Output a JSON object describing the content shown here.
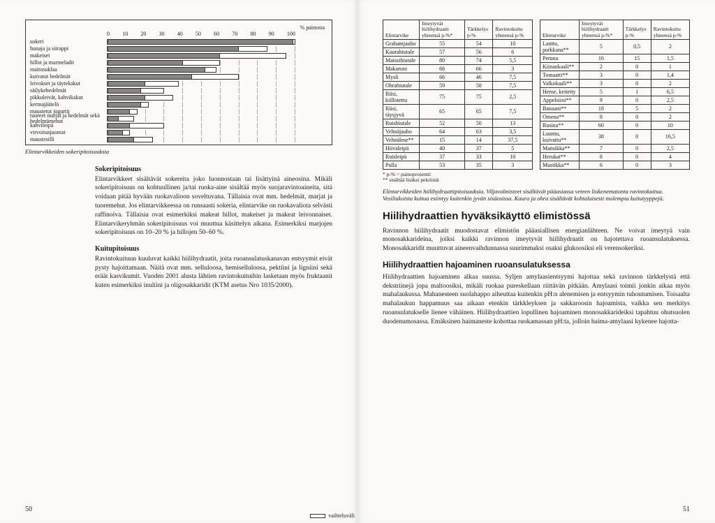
{
  "chart": {
    "type": "bar",
    "header_right": "% painosta",
    "xticks": [
      "0",
      "10",
      "20",
      "30",
      "40",
      "50",
      "60",
      "70",
      "80",
      "90",
      "100"
    ],
    "legend_label": "vaihteluväli",
    "caption": "Elintarvikkeiden sokeripitoisuuksia",
    "bar_color_inner": "#878582",
    "bar_color_outer": "#fefdf8",
    "grid_color": "#aaaaaa",
    "rows": [
      {
        "label": "sokeri",
        "lo": 99,
        "hi": 100
      },
      {
        "label": "hunaja ja siirappi",
        "lo": 70,
        "hi": 85
      },
      {
        "label": "makeiset",
        "lo": 60,
        "hi": 95
      },
      {
        "label": "hillot ja marmeladit",
        "lo": 40,
        "hi": 60
      },
      {
        "label": "maitosuklaa",
        "lo": 52,
        "hi": 58
      },
      {
        "label": "kuivatut hedelmät",
        "lo": 45,
        "hi": 70
      },
      {
        "label": "leivokset ja täytekakut",
        "lo": 20,
        "hi": 38
      },
      {
        "label": "säilykehedelmät",
        "lo": 18,
        "hi": 30
      },
      {
        "label": "pikkuleivät, kahvikakut",
        "lo": 20,
        "hi": 35
      },
      {
        "label": "kermajäätelö",
        "lo": 18,
        "hi": 22
      },
      {
        "label": "maustetut jogurtit",
        "lo": 12,
        "hi": 16
      },
      {
        "label": "tuoreet marjat ja hedelmät sekä hedelmämehut",
        "lo": 6,
        "hi": 14
      },
      {
        "label": "kahvileipä",
        "lo": 12,
        "hi": 30
      },
      {
        "label": "virvoitusjuomat",
        "lo": 8,
        "hi": 12
      },
      {
        "label": "maustesilli",
        "lo": 14,
        "hi": 24
      }
    ]
  },
  "left_text": {
    "h1": "Sokeripitoisuus",
    "p1": "Elintarvikkeet sisältävät sokereita joko luonnostaan tai lisättyinä aineosina. Mikäli sokeripitoisuus on kohtuullinen ja/tai ruoka-aine sisältää myös suojaravintoaineita, sitä voidaan pitää hyvään ruokavalioon soveltuvana. Tällaisia ovat mm. hedelmät, marjat ja tuoremehut. Jos elintarvikkeessa on runsaasti sokeria, elintarvike on ruokavaliota selvästi raffinoiva. Tällaisia ovat esimerkiksi makeat hillot, makeiset ja makeat leivonnaiset. Elintarvikeryhmän sokeripitoisuus voi muuttua käsittelyn aikana. Esimerkiksi marjojen sokeripitoisuus on 10–20 % ja hillojen 50–60 %.",
    "h2": "Kuitupitoisuus",
    "p2": "Ravintokuituun kuuluvat kaikki hiilihydraatit, joita ruoansulatuskanavan entsyymit eivät pysty hajoittamaan. Näitä ovat mm. selluloosa, hemiselluloosa, pektiini ja ligniini sekä eräät kasvikumit. Vuoden 2001 alusta lähtien ravintokuituihin lasketaan myös fruktaanit kuten esimerkiksi inuliini ja oligosakkaridit (KTM asetus Nro 1035/2000)."
  },
  "tables": {
    "headers": [
      "Elintarvike",
      "Imeytyvät hiilihydraatit yhteensä p-%*",
      "Tärkkelys p-%",
      "Ravintokuitu yhteensä p-%"
    ],
    "footnote1": "* p-% = painoprosentti",
    "footnote2": "** sisältää lisäksi pektiiniä",
    "caption": "Elintarvikkeiden hiilihydraattipitoisuuksia. Viljavalmisteet sisältävät pääasiassa veteen liukenematonta ravintokuitua. Vesiliukoista kuitua esiintyy kuitenkin jyvän sisäosissa. Kaura ja ohra sisältävät kohtalaisesti molempia kuitutyyppejä.",
    "left": [
      {
        "n": "Grahamjauho",
        "a": "55",
        "b": "54",
        "c": "10"
      },
      {
        "n": "Kaurahiutale",
        "a": "57",
        "b": "56",
        "c": "6"
      },
      {
        "n": "Maissihiutale",
        "a": "80",
        "b": "74",
        "c": "5,5"
      },
      {
        "n": "Makaroni",
        "a": "66",
        "b": "66",
        "c": "3"
      },
      {
        "n": "Mysli",
        "a": "66",
        "b": "46",
        "c": "7,5"
      },
      {
        "n": "Ohrahiutale",
        "a": "59",
        "b": "58",
        "c": "7,5"
      },
      {
        "n": "Riisi, kiillotettu",
        "a": "75",
        "b": "75",
        "c": "2,5"
      },
      {
        "n": "Riisi, täysjyvä",
        "a": "65",
        "b": "65",
        "c": "7,5"
      },
      {
        "n": "Ruishiutale",
        "a": "52",
        "b": "50",
        "c": "13"
      },
      {
        "n": "Vehnäjauho",
        "a": "64",
        "b": "63",
        "c": "3,5"
      },
      {
        "n": "Vehnälese**",
        "a": "15",
        "b": "14",
        "c": "37,5"
      },
      {
        "n": "Hiivaleipä",
        "a": "40",
        "b": "37",
        "c": "5"
      },
      {
        "n": "Ruisleipä",
        "a": "37",
        "b": "33",
        "c": "10"
      },
      {
        "n": "Pulla",
        "a": "53",
        "b": "35",
        "c": "3"
      }
    ],
    "right": [
      {
        "n": "Lanttu, porkkana**",
        "a": "5",
        "b": "0,5",
        "c": "2"
      },
      {
        "n": "Peruna",
        "a": "16",
        "b": "15",
        "c": "1,5"
      },
      {
        "n": "Kiinankaali**",
        "a": "2",
        "b": "0",
        "c": "1"
      },
      {
        "n": "Tomaatti**",
        "a": "3",
        "b": "0",
        "c": "1,4"
      },
      {
        "n": "Valkokaali**",
        "a": "3",
        "b": "0",
        "c": "2"
      },
      {
        "n": "Herne, keitetty",
        "a": "5",
        "b": "1",
        "c": "6,5"
      },
      {
        "n": "Appelsiini**",
        "a": "9",
        "b": "0",
        "c": "2,5"
      },
      {
        "n": "Banaani**",
        "a": "18",
        "b": "5",
        "c": "2"
      },
      {
        "n": "Omena**",
        "a": "8",
        "b": "0",
        "c": "2"
      },
      {
        "n": "Rusina**",
        "a": "60",
        "b": "0",
        "c": "10"
      },
      {
        "n": "Luumu, kuivattu**",
        "a": "38",
        "b": "0",
        "c": "16,5"
      },
      {
        "n": "Mansikka**",
        "a": "7",
        "b": "0",
        "c": "2,5"
      },
      {
        "n": "Herukat**",
        "a": "8",
        "b": "0",
        "c": "4"
      },
      {
        "n": "Mustikka**",
        "a": "6",
        "b": "0",
        "c": "3"
      }
    ]
  },
  "right_text": {
    "h2a": "Hiilihydraattien hyväksikäyttö elimistössä",
    "p_a": "Ravinnon hiilihydraatit muodostavat elimistön pääasiallisen energianlähteen. Ne voivat imeytyä vain monosakkarideina, joiksi kaikki ravinnon imeytyvät hiilihydraatit on hajotettava ruoansulatuksessa. Monosakkaridit muuttuvat aineenvaihdunnassa suurimmaksi osaksi glukoosiksi eli verensokeriksi.",
    "h3b": "Hiilihydraattien hajoaminen ruoansulatuksessa",
    "p_b": "Hiilihydraattien hajoaminen alkaa suussa. Syljen amylaasientsyymi hajottaa sekä ravinnon tärkkelystä että dekstriinejä jopa maltoosiksi, mikäli ruokaa pureskellaan riittävän pitkään. Amylaasi toimii jonkin aikaa myös mahalaukussa. Mahanesteen suolahappo aiheuttaa kuitenkin pH:n alenemisen ja entsyymin tuhoutumisen. Toisaalta mahalaukun happamuus saa aikaan etenkin tärkkleyksen ja sakkaroosin hajoamista, vaikka sen merkitys ruoansulatukselle lienee vähäinen. Hiilihydraattien lopullinen hajoaminen monosakkarideiksi tapahtuu ohutsuolen duodenumosassa. Emäksinen haimaneste kohottaa ruokamassan pH:ta, jolloin haima-amylaasi kykenee hajotta-"
  },
  "pagenum_left": "50",
  "pagenum_right": "51"
}
